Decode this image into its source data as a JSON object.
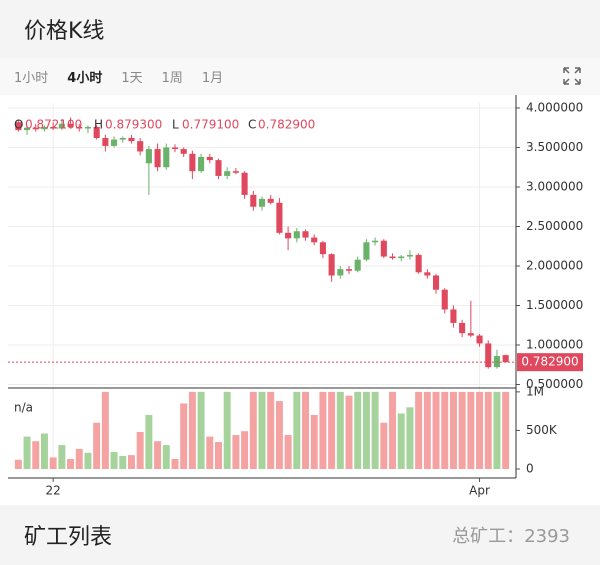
{
  "header": {
    "title": "价格K线"
  },
  "tabs": {
    "items": [
      "1小时",
      "4小时",
      "1天",
      "1周",
      "1月"
    ],
    "active": 1
  },
  "chart_data": {
    "type": "candlestick",
    "info": {
      "open_label": "O",
      "open": "0.872100",
      "high_label": "H",
      "high": "0.879300",
      "low_label": "L",
      "low": "0.779100",
      "close_label": "C",
      "close": "0.782900"
    },
    "price_label": "0.782900",
    "volume_label": "n/a",
    "categories": [
      null,
      null,
      null,
      null,
      "22",
      null,
      null,
      null,
      null,
      null,
      null,
      null,
      null,
      null,
      null,
      null,
      null,
      null,
      null,
      null,
      null,
      null,
      null,
      null,
      null,
      null,
      null,
      null,
      null,
      null,
      null,
      null,
      null,
      null,
      null,
      null,
      null,
      null,
      null,
      null,
      null,
      null,
      null,
      null,
      null,
      null,
      null,
      null,
      null,
      null,
      null,
      null,
      null,
      "Apr",
      null,
      null,
      null
    ],
    "open": [
      3.82,
      3.72,
      3.75,
      3.73,
      3.76,
      3.74,
      3.8,
      3.76,
      3.74,
      3.76,
      3.62,
      3.52,
      3.6,
      3.62,
      3.58,
      3.3,
      3.48,
      3.25,
      3.5,
      3.48,
      3.42,
      3.2,
      3.38,
      3.34,
      3.14,
      3.2,
      3.18,
      2.9,
      2.75,
      2.85,
      2.8,
      2.42,
      2.35,
      2.44,
      2.36,
      2.3,
      2.15,
      1.88,
      1.96,
      1.94,
      2.08,
      2.3,
      2.32,
      2.12,
      2.1,
      2.12,
      2.14,
      1.92,
      1.88,
      1.7,
      1.45,
      1.28,
      1.15,
      1.12,
      1.02,
      0.72,
      0.8721
    ],
    "high": [
      3.85,
      3.78,
      3.8,
      3.78,
      3.82,
      3.86,
      3.88,
      3.8,
      3.78,
      3.78,
      3.66,
      3.64,
      3.64,
      3.66,
      3.62,
      3.52,
      3.55,
      3.55,
      3.54,
      3.5,
      3.46,
      3.42,
      3.42,
      3.36,
      3.25,
      3.24,
      3.2,
      2.95,
      2.88,
      2.9,
      2.86,
      2.5,
      2.48,
      2.46,
      2.4,
      2.32,
      2.16,
      2.0,
      2.0,
      2.12,
      2.34,
      2.36,
      2.34,
      2.16,
      2.14,
      2.2,
      2.16,
      1.96,
      1.9,
      1.72,
      1.5,
      1.32,
      1.56,
      1.14,
      1.06,
      0.94,
      0.8793
    ],
    "low": [
      3.7,
      3.66,
      3.7,
      3.7,
      3.72,
      3.72,
      3.74,
      3.7,
      3.68,
      3.6,
      3.45,
      3.5,
      3.56,
      3.55,
      3.4,
      2.9,
      3.2,
      3.22,
      3.44,
      3.38,
      3.1,
      3.18,
      3.3,
      3.1,
      3.1,
      3.16,
      2.85,
      2.7,
      2.7,
      2.78,
      2.4,
      2.2,
      2.3,
      2.32,
      2.26,
      2.1,
      1.8,
      1.84,
      1.9,
      1.92,
      2.06,
      2.26,
      2.1,
      2.08,
      2.06,
      2.08,
      1.9,
      1.84,
      1.65,
      1.4,
      1.22,
      1.1,
      1.1,
      0.98,
      0.7,
      0.7,
      0.7791
    ],
    "close": [
      3.72,
      3.75,
      3.73,
      3.76,
      3.74,
      3.8,
      3.76,
      3.74,
      3.76,
      3.62,
      3.52,
      3.6,
      3.62,
      3.58,
      3.45,
      3.48,
      3.25,
      3.5,
      3.48,
      3.42,
      3.2,
      3.38,
      3.34,
      3.14,
      3.2,
      3.18,
      2.9,
      2.75,
      2.85,
      2.8,
      2.42,
      2.35,
      2.44,
      2.36,
      2.3,
      2.15,
      1.88,
      1.96,
      1.94,
      2.08,
      2.3,
      2.32,
      2.12,
      2.1,
      2.12,
      2.14,
      1.92,
      1.88,
      1.7,
      1.45,
      1.28,
      1.15,
      1.12,
      1.02,
      0.72,
      0.86,
      0.7829
    ],
    "volume": [
      120000,
      420000,
      360000,
      460000,
      150000,
      310000,
      130000,
      260000,
      210000,
      600000,
      1000000,
      220000,
      170000,
      180000,
      480000,
      700000,
      360000,
      310000,
      130000,
      850000,
      1000000,
      1000000,
      420000,
      350000,
      1000000,
      440000,
      490000,
      1000000,
      1000000,
      1000000,
      880000,
      440000,
      1000000,
      1000000,
      700000,
      1000000,
      1000000,
      1000000,
      950000,
      1000000,
      1000000,
      1000000,
      600000,
      1000000,
      720000,
      800000,
      1000000,
      1000000,
      1000000,
      1000000,
      1000000,
      1000000,
      1000000,
      1000000,
      1000000,
      1000000,
      1000000
    ],
    "up_color": "#6ab26a",
    "down_color": "#e0485e",
    "volume_up_color": "#a6d39b",
    "volume_down_color": "#f4a2a2",
    "ylim": [
      0.456,
      4.063
    ],
    "yticks": [
      {
        "value": 0.5,
        "label": "0.500000"
      },
      {
        "value": 1,
        "label": "1.000000"
      },
      {
        "value": 1.5,
        "label": "1.500000"
      },
      {
        "value": 2,
        "label": "2.000000"
      },
      {
        "value": 2.5,
        "label": "2.500000"
      },
      {
        "value": 3,
        "label": "3.000000"
      },
      {
        "value": 3.5,
        "label": "3.500000"
      },
      {
        "value": 4,
        "label": "4.000000"
      }
    ],
    "y2lim": [
      0,
      1050000
    ],
    "y2ticks": [
      0,
      {
        "value": 500000,
        "label": "500K"
      },
      {
        "value": 1000000,
        "label": "1M"
      }
    ],
    "grid": true
  },
  "footer": {
    "title": "矿工列表",
    "count_label": "总矿工：",
    "count": "2393"
  }
}
